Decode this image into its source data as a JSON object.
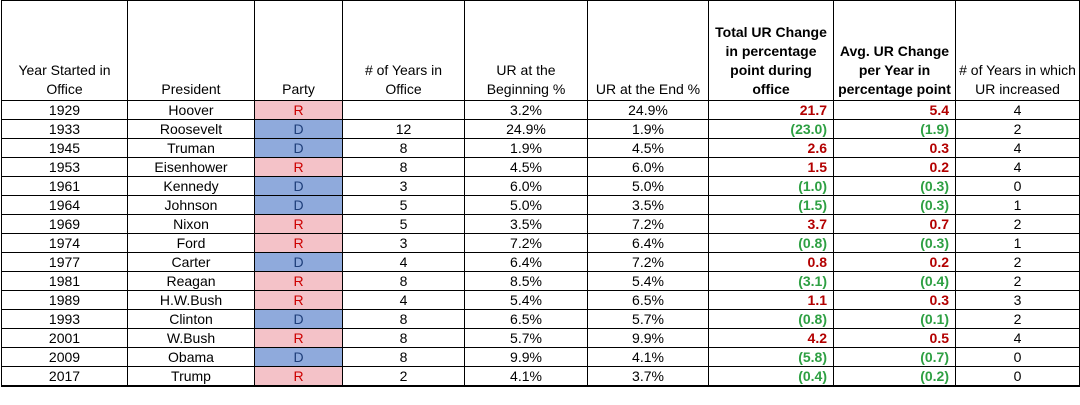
{
  "colors": {
    "republican_bg": "#f4c2c8",
    "democrat_bg": "#8faadc",
    "increase_text": "#b30000",
    "decrease_text": "#2ea043"
  },
  "headers": {
    "year_started": "Year Started in Office",
    "president": "President",
    "party": "Party",
    "years_in_office": "# of Years in Office",
    "ur_begin": "UR at the Beginning %",
    "ur_end": "UR at the End %",
    "total_change": "Total UR Change in percentage point during office",
    "avg_change": "Avg. UR Change per Year in percentage point",
    "years_increased": "# of Years in which UR increased"
  },
  "rows": [
    {
      "year": "1929",
      "president": "Hoover",
      "party": "R",
      "years": "",
      "ur_begin": "3.2%",
      "ur_end": "24.9%",
      "total": "21.7",
      "avg": "5.4",
      "increased": "4"
    },
    {
      "year": "1933",
      "president": "Roosevelt",
      "party": "D",
      "years": "12",
      "ur_begin": "24.9%",
      "ur_end": "1.9%",
      "total": "(23.0)",
      "avg": "(1.9)",
      "increased": "2"
    },
    {
      "year": "1945",
      "president": "Truman",
      "party": "D",
      "years": "8",
      "ur_begin": "1.9%",
      "ur_end": "4.5%",
      "total": "2.6",
      "avg": "0.3",
      "increased": "4"
    },
    {
      "year": "1953",
      "president": "Eisenhower",
      "party": "R",
      "years": "8",
      "ur_begin": "4.5%",
      "ur_end": "6.0%",
      "total": "1.5",
      "avg": "0.2",
      "increased": "4"
    },
    {
      "year": "1961",
      "president": "Kennedy",
      "party": "D",
      "years": "3",
      "ur_begin": "6.0%",
      "ur_end": "5.0%",
      "total": "(1.0)",
      "avg": "(0.3)",
      "increased": "0"
    },
    {
      "year": "1964",
      "president": "Johnson",
      "party": "D",
      "years": "5",
      "ur_begin": "5.0%",
      "ur_end": "3.5%",
      "total": "(1.5)",
      "avg": "(0.3)",
      "increased": "1"
    },
    {
      "year": "1969",
      "president": "Nixon",
      "party": "R",
      "years": "5",
      "ur_begin": "3.5%",
      "ur_end": "7.2%",
      "total": "3.7",
      "avg": "0.7",
      "increased": "2"
    },
    {
      "year": "1974",
      "president": "Ford",
      "party": "R",
      "years": "3",
      "ur_begin": "7.2%",
      "ur_end": "6.4%",
      "total": "(0.8)",
      "avg": "(0.3)",
      "increased": "1"
    },
    {
      "year": "1977",
      "president": "Carter",
      "party": "D",
      "years": "4",
      "ur_begin": "6.4%",
      "ur_end": "7.2%",
      "total": "0.8",
      "avg": "0.2",
      "increased": "2"
    },
    {
      "year": "1981",
      "president": "Reagan",
      "party": "R",
      "years": "8",
      "ur_begin": "8.5%",
      "ur_end": "5.4%",
      "total": "(3.1)",
      "avg": "(0.4)",
      "increased": "2"
    },
    {
      "year": "1989",
      "president": "H.W.Bush",
      "party": "R",
      "years": "4",
      "ur_begin": "5.4%",
      "ur_end": "6.5%",
      "total": "1.1",
      "avg": "0.3",
      "increased": "3"
    },
    {
      "year": "1993",
      "president": "Clinton",
      "party": "D",
      "years": "8",
      "ur_begin": "6.5%",
      "ur_end": "5.7%",
      "total": "(0.8)",
      "avg": "(0.1)",
      "increased": "2"
    },
    {
      "year": "2001",
      "president": "W.Bush",
      "party": "R",
      "years": "8",
      "ur_begin": "5.7%",
      "ur_end": "9.9%",
      "total": "4.2",
      "avg": "0.5",
      "increased": "4"
    },
    {
      "year": "2009",
      "president": "Obama",
      "party": "D",
      "years": "8",
      "ur_begin": "9.9%",
      "ur_end": "4.1%",
      "total": "(5.8)",
      "avg": "(0.7)",
      "increased": "0"
    },
    {
      "year": "2017",
      "president": "Trump",
      "party": "R",
      "years": "2",
      "ur_begin": "4.1%",
      "ur_end": "3.7%",
      "total": "(0.4)",
      "avg": "(0.2)",
      "increased": "0"
    }
  ]
}
